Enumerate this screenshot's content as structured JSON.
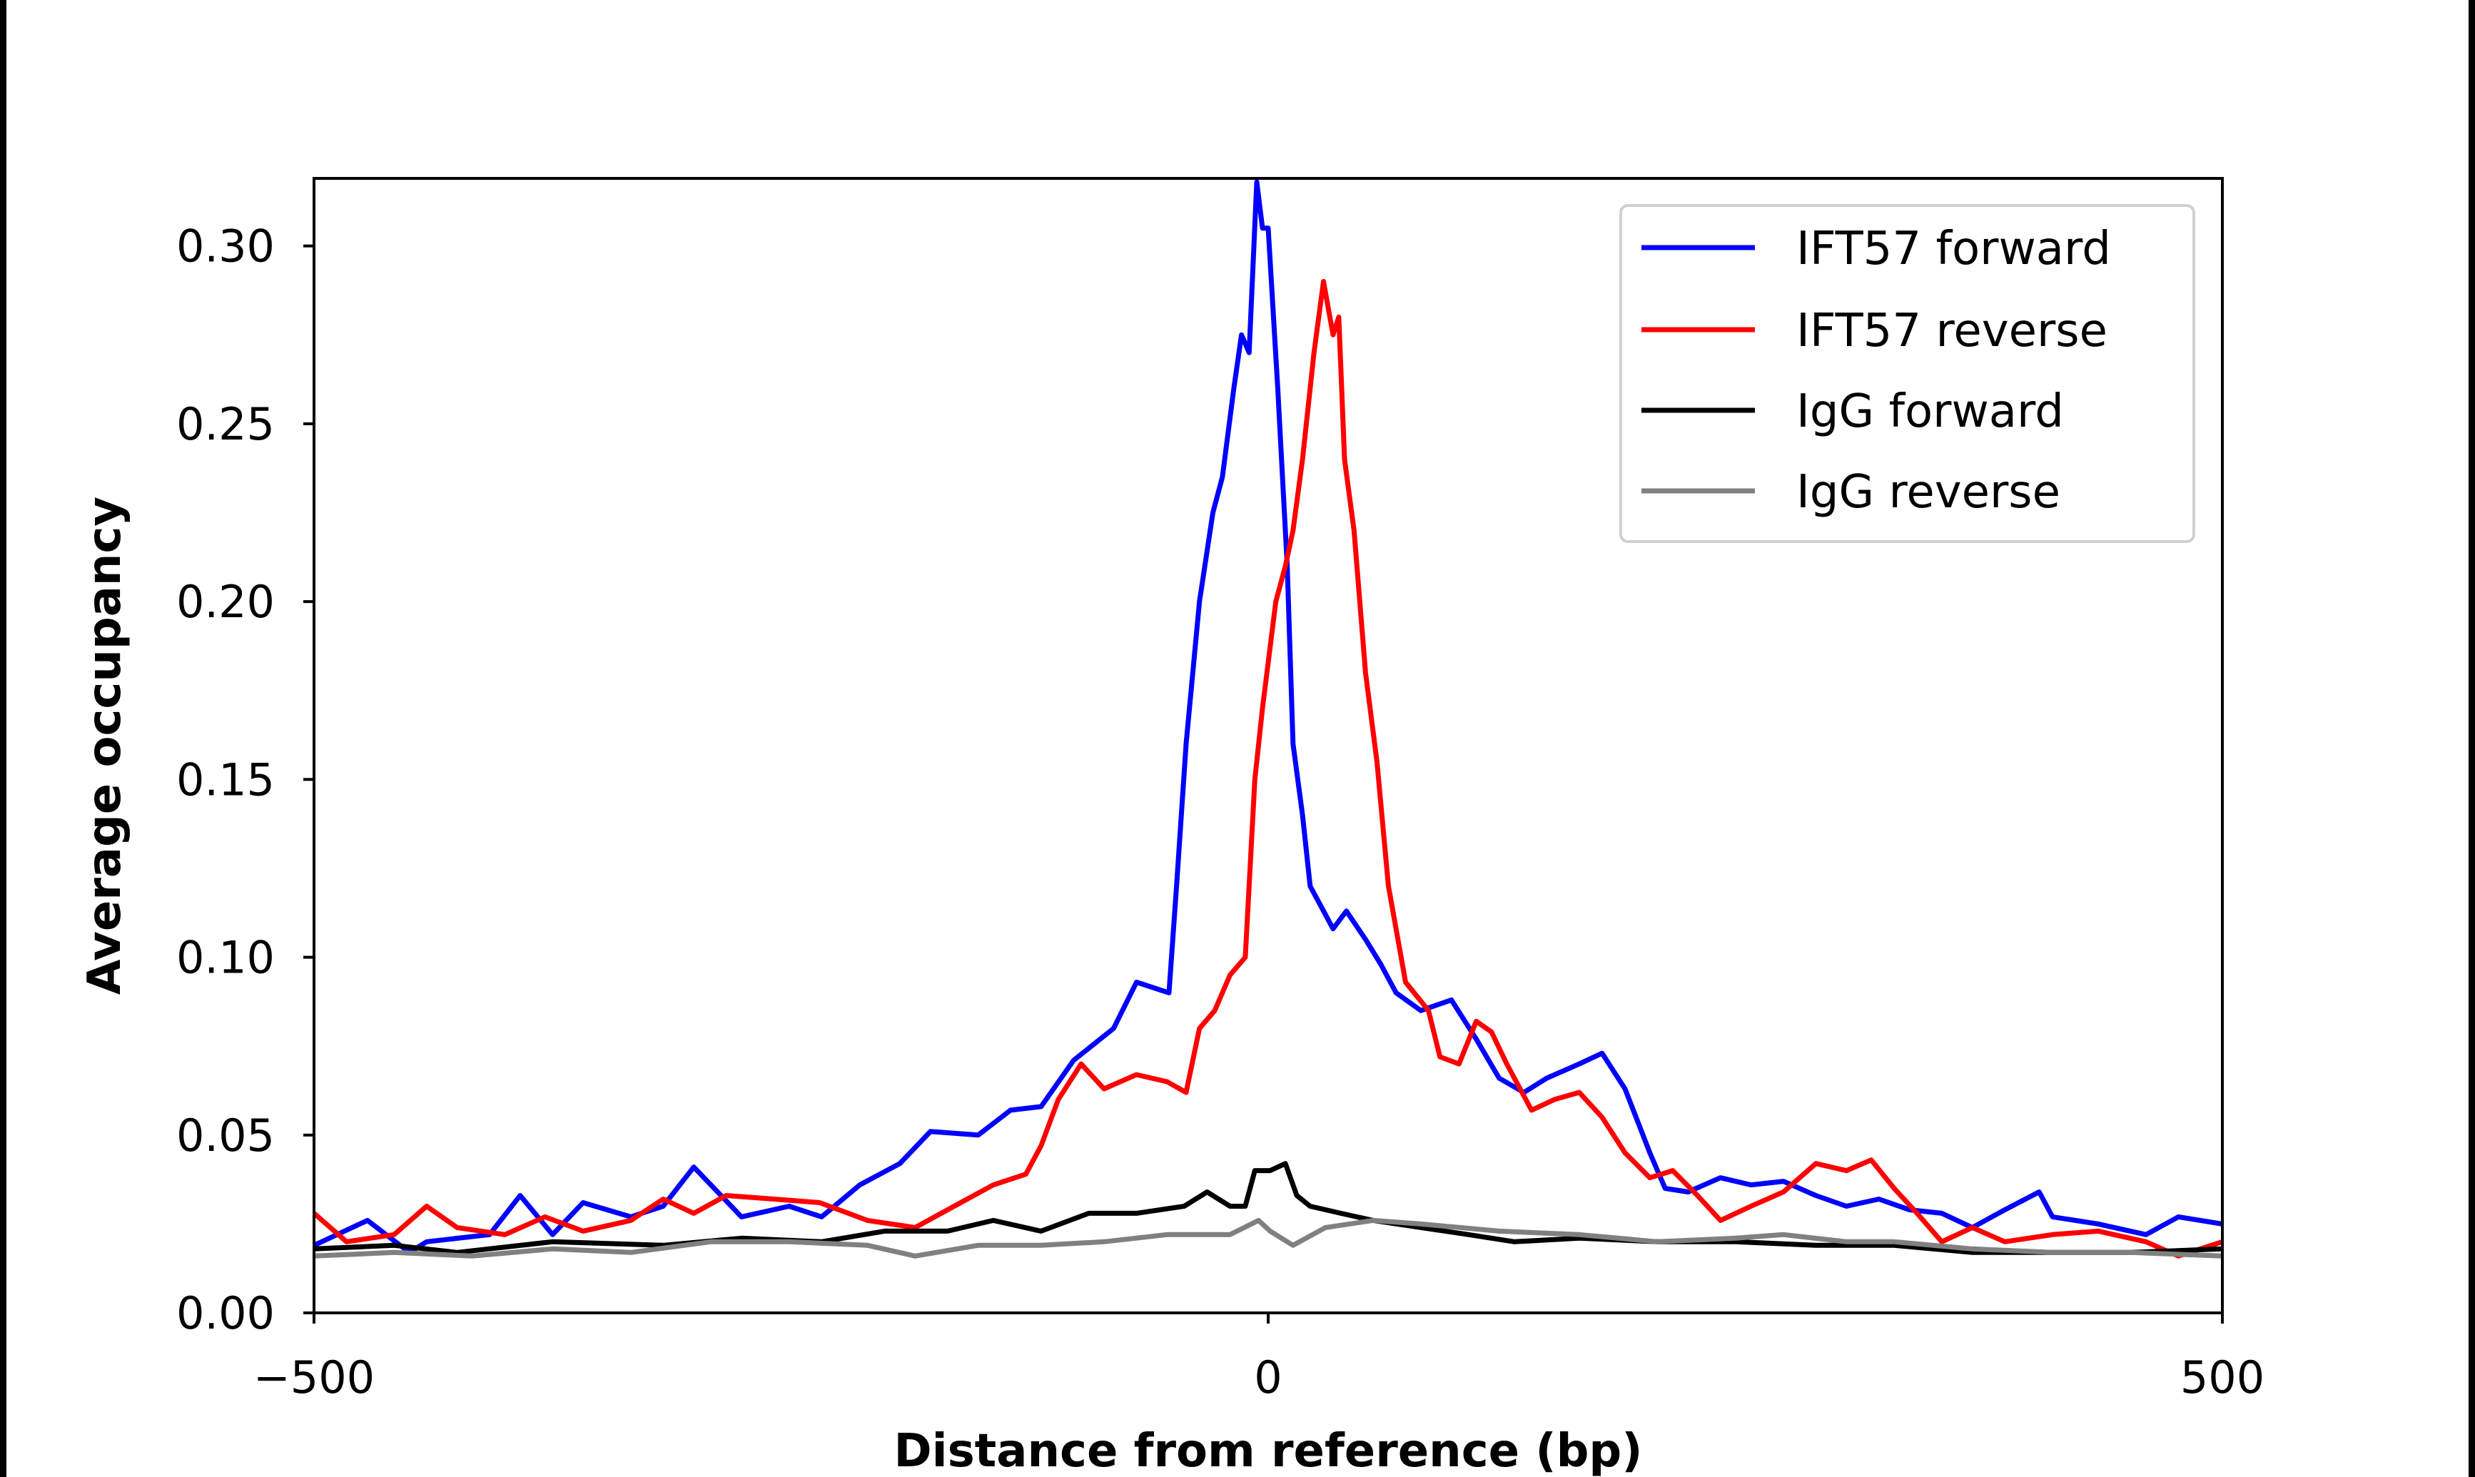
{
  "chart_data": {
    "type": "line",
    "title": "",
    "xlabel": "Distance from reference (bp)",
    "ylabel": "Average occupancy",
    "xlim": [
      -500,
      500
    ],
    "ylim": [
      0,
      0.319
    ],
    "xticks": [
      -500,
      0,
      500
    ],
    "xtick_labels": [
      "−500",
      "0",
      "500"
    ],
    "yticks": [
      0,
      0.05,
      0.1,
      0.15,
      0.2,
      0.25,
      0.3
    ],
    "ytick_labels": [
      "0.00",
      "0.05",
      "0.10",
      "0.15",
      "0.20",
      "0.25",
      "0.30"
    ],
    "grid": false,
    "legend_placement": "upper right",
    "series": [
      {
        "name": "IFT57 forward",
        "color": "#0000ff",
        "x": [
          -500,
          -472,
          -450,
          -441,
          -408,
          -392,
          -375,
          -359,
          -334,
          -317,
          -301,
          -276,
          -251,
          -234,
          -214,
          -193,
          -177,
          -152,
          -135,
          -119,
          -102,
          -81,
          -69,
          -52,
          -48,
          -43,
          -36,
          -29,
          -24,
          -18,
          -14,
          -10,
          -6,
          -3,
          0,
          5,
          10,
          13,
          18,
          22,
          27,
          34,
          41,
          51,
          59,
          67,
          80,
          96,
          109,
          121,
          134,
          146,
          163,
          175,
          187,
          200,
          208,
          220,
          237,
          253,
          270,
          287,
          303,
          320,
          336,
          353,
          369,
          386,
          404,
          411,
          435,
          460,
          477,
          500
        ],
        "y": [
          0.019,
          0.026,
          0.017,
          0.02,
          0.022,
          0.033,
          0.022,
          0.031,
          0.027,
          0.03,
          0.041,
          0.027,
          0.03,
          0.027,
          0.036,
          0.042,
          0.051,
          0.05,
          0.057,
          0.058,
          0.071,
          0.08,
          0.093,
          0.09,
          0.12,
          0.16,
          0.2,
          0.225,
          0.235,
          0.26,
          0.275,
          0.27,
          0.318,
          0.305,
          0.305,
          0.26,
          0.21,
          0.16,
          0.14,
          0.12,
          0.115,
          0.108,
          0.113,
          0.105,
          0.098,
          0.09,
          0.085,
          0.088,
          0.077,
          0.066,
          0.062,
          0.066,
          0.07,
          0.073,
          0.063,
          0.045,
          0.035,
          0.034,
          0.038,
          0.036,
          0.037,
          0.033,
          0.03,
          0.032,
          0.029,
          0.028,
          0.024,
          0.029,
          0.034,
          0.027,
          0.025,
          0.022,
          0.027,
          0.025
        ]
      },
      {
        "name": "IFT57 reverse",
        "color": "#ff0000",
        "x": [
          -500,
          -483,
          -458,
          -441,
          -425,
          -400,
          -379,
          -359,
          -334,
          -317,
          -301,
          -284,
          -259,
          -235,
          -210,
          -185,
          -168,
          -144,
          -127,
          -119,
          -110,
          -98,
          -86,
          -69,
          -53,
          -43,
          -36,
          -28,
          -20,
          -12,
          -7,
          -3,
          4,
          9,
          13,
          18,
          24,
          29,
          34,
          37,
          40,
          45,
          51,
          57,
          63,
          72,
          84,
          90,
          100,
          109,
          117,
          125,
          138,
          150,
          163,
          175,
          187,
          200,
          212,
          225,
          237,
          253,
          270,
          287,
          303,
          316,
          328,
          340,
          353,
          369,
          386,
          411,
          435,
          460,
          477,
          500
        ],
        "y": [
          0.028,
          0.02,
          0.022,
          0.03,
          0.024,
          0.022,
          0.027,
          0.023,
          0.026,
          0.032,
          0.028,
          0.033,
          0.032,
          0.031,
          0.026,
          0.024,
          0.029,
          0.036,
          0.039,
          0.047,
          0.06,
          0.07,
          0.063,
          0.067,
          0.065,
          0.062,
          0.08,
          0.085,
          0.095,
          0.1,
          0.15,
          0.17,
          0.2,
          0.21,
          0.22,
          0.24,
          0.27,
          0.29,
          0.275,
          0.28,
          0.24,
          0.22,
          0.18,
          0.155,
          0.12,
          0.093,
          0.085,
          0.072,
          0.07,
          0.082,
          0.079,
          0.07,
          0.057,
          0.06,
          0.062,
          0.055,
          0.045,
          0.038,
          0.04,
          0.033,
          0.026,
          0.03,
          0.034,
          0.042,
          0.04,
          0.043,
          0.035,
          0.028,
          0.02,
          0.024,
          0.02,
          0.022,
          0.023,
          0.02,
          0.016,
          0.02
        ]
      },
      {
        "name": "IgG forward",
        "color": "#000000",
        "x": [
          -500,
          -458,
          -425,
          -375,
          -317,
          -276,
          -234,
          -201,
          -168,
          -144,
          -119,
          -94,
          -69,
          -44,
          -32,
          -20,
          -12,
          -7,
          1,
          9,
          15,
          22,
          38,
          55,
          80,
          105,
          129,
          163,
          204,
          245,
          287,
          328,
          369,
          411,
          452,
          500
        ],
        "y": [
          0.018,
          0.019,
          0.017,
          0.02,
          0.019,
          0.021,
          0.02,
          0.023,
          0.023,
          0.026,
          0.023,
          0.028,
          0.028,
          0.03,
          0.034,
          0.03,
          0.03,
          0.04,
          0.04,
          0.042,
          0.033,
          0.03,
          0.028,
          0.026,
          0.024,
          0.022,
          0.02,
          0.021,
          0.02,
          0.02,
          0.019,
          0.019,
          0.017,
          0.017,
          0.017,
          0.018
        ]
      },
      {
        "name": "IgG reverse",
        "color": "#808080",
        "x": [
          -500,
          -458,
          -417,
          -375,
          -334,
          -292,
          -251,
          -210,
          -185,
          -152,
          -119,
          -86,
          -53,
          -20,
          -5,
          1,
          13,
          30,
          55,
          80,
          121,
          163,
          204,
          245,
          270,
          303,
          328,
          369,
          411,
          452,
          500
        ],
        "y": [
          0.016,
          0.017,
          0.016,
          0.018,
          0.017,
          0.02,
          0.02,
          0.019,
          0.016,
          0.019,
          0.019,
          0.02,
          0.022,
          0.022,
          0.026,
          0.023,
          0.019,
          0.024,
          0.026,
          0.025,
          0.023,
          0.022,
          0.02,
          0.021,
          0.022,
          0.02,
          0.02,
          0.018,
          0.017,
          0.017,
          0.016
        ]
      }
    ]
  }
}
